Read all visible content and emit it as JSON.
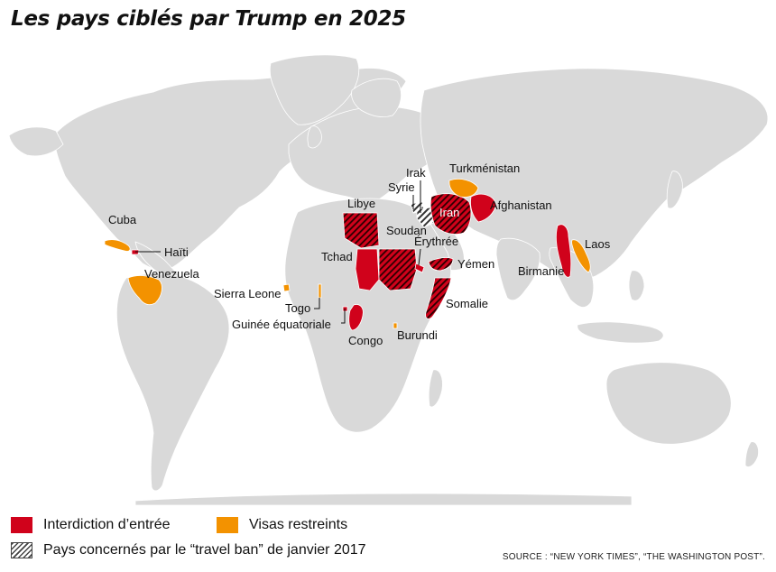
{
  "title": "Les pays ciblés par Trump en 2025",
  "colors": {
    "land": "#d9d9d9",
    "entry_ban": "#d0021b",
    "visa_restricted": "#f39200",
    "hatch": "#333333"
  },
  "countries": {
    "cuba": "Cuba",
    "haiti": "Haïti",
    "venezuela": "Venezuela",
    "sierra_leone": "Sierra Leone",
    "togo": "Togo",
    "equatorial_guinea": "Guinée équatoriale",
    "congo": "Congo",
    "burundi": "Burundi",
    "libya": "Libye",
    "chad": "Tchad",
    "sudan": "Soudan",
    "eritrea": "Érythrée",
    "yemen": "Yémen",
    "somalia": "Somalie",
    "iraq": "Irak",
    "syria": "Syrie",
    "iran": "Iran",
    "turkmenistan": "Turkménistan",
    "afghanistan": "Afghanistan",
    "myanmar": "Birmanie",
    "laos": "Laos"
  },
  "legend": {
    "entry_ban": "Interdiction d’entrée",
    "visa_restricted": "Visas restreints",
    "travel_ban_2017": "Pays concernés par le “travel ban” de janvier 2017"
  },
  "source": "SOURCE : “NEW YORK TIMES”, “THE WASHINGTON POST”."
}
